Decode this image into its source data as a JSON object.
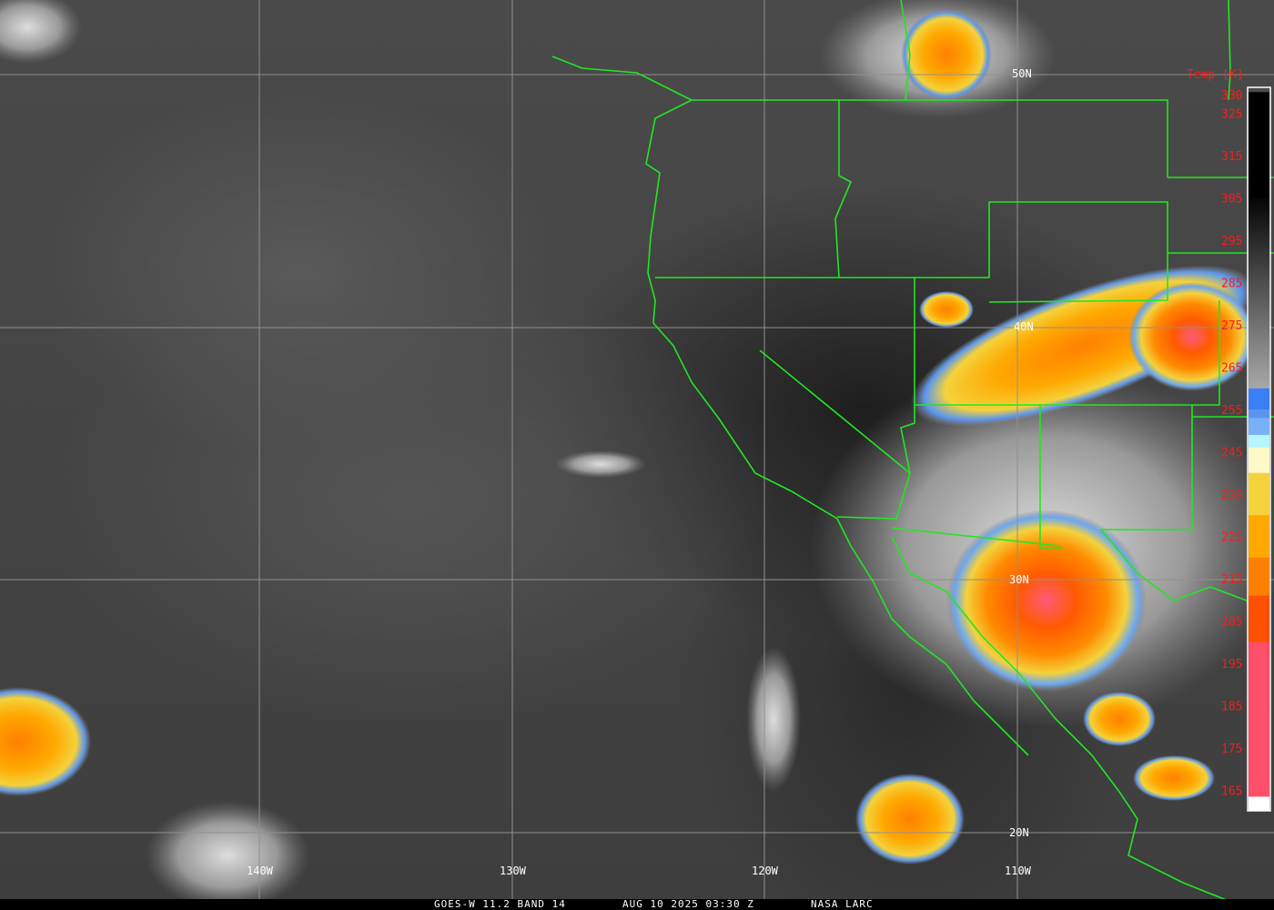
{
  "satellite_title": "GOES-W 11.2 BAND 14",
  "timestamp": "AUG 10 2025 03:30 Z",
  "credit": "NASA LARC",
  "colors": {
    "borders": "#22e622",
    "grid": "#909090",
    "labels": "#ff1a1a"
  },
  "grid_labels": {
    "lat": [
      "50N",
      "40N",
      "30N",
      "20N"
    ],
    "lon": [
      "140W",
      "130W",
      "120W",
      "110W"
    ]
  },
  "colorbar": {
    "title": "Temp [K]",
    "ticks": [
      "330",
      "325",
      "315",
      "305",
      "295",
      "285",
      "275",
      "265",
      "255",
      "245",
      "235",
      "225",
      "215",
      "205",
      "195",
      "185",
      "175",
      "165"
    ],
    "stops": [
      {
        "t": 330,
        "color": "#000000"
      },
      {
        "t": 305,
        "color": "#050505"
      },
      {
        "t": 260,
        "color": "#a8a8a8"
      },
      {
        "t": 260,
        "color": "#3a7ff7"
      },
      {
        "t": 255,
        "color": "#5a96f0"
      },
      {
        "t": 253,
        "color": "#7ab0f5"
      },
      {
        "t": 249,
        "color": "#b5f5fb"
      },
      {
        "t": 246,
        "color": "#fff8c8"
      },
      {
        "t": 240,
        "color": "#f4d23c"
      },
      {
        "t": 230,
        "color": "#ffa800"
      },
      {
        "t": 220,
        "color": "#ff8000"
      },
      {
        "t": 211,
        "color": "#ff5000"
      },
      {
        "t": 200,
        "color": "#ff4f6a"
      },
      {
        "t": 163.5,
        "color": "#ffffff"
      },
      {
        "t": 163,
        "color": "#000000"
      }
    ]
  }
}
